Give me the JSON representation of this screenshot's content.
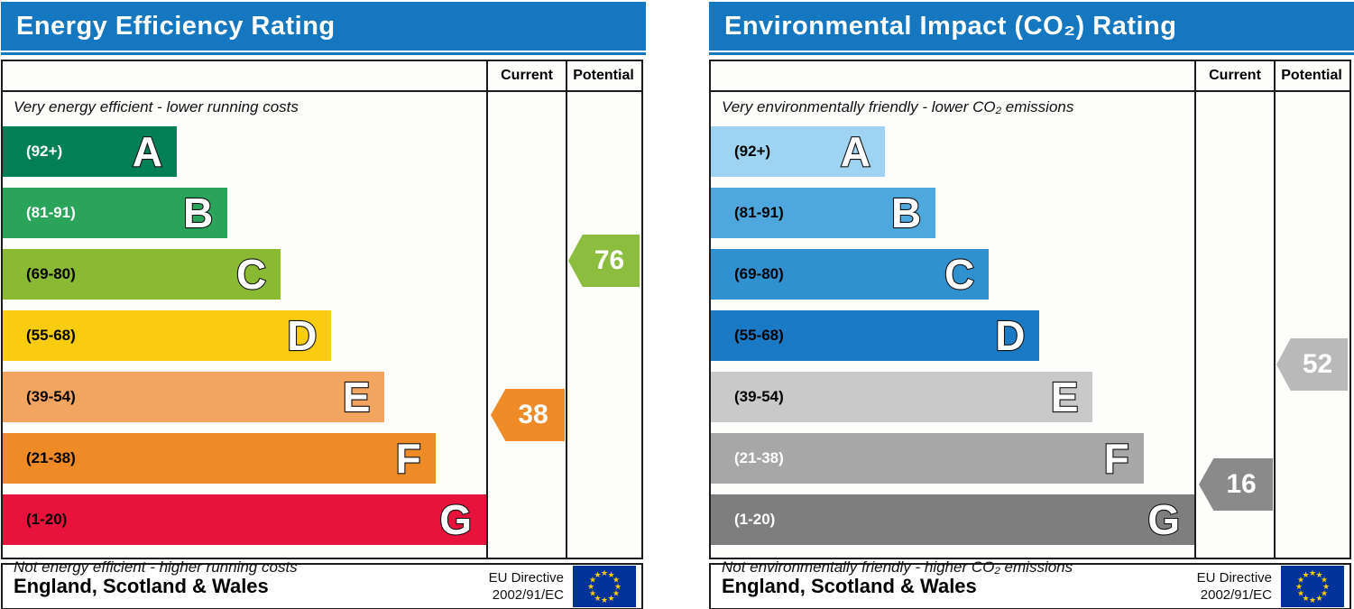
{
  "colors": {
    "header_bg": "#1577bf",
    "flag_blue": "#003399",
    "flag_star": "#ffcc00"
  },
  "panels": [
    {
      "title": "Energy Efficiency Rating",
      "columns": {
        "current": "Current",
        "potential": "Potential"
      },
      "top_caption": "Very energy efficient - lower running costs",
      "bottom_caption": "Not energy efficient - higher running costs",
      "bands": [
        {
          "letter": "A",
          "range": "(92+)",
          "min": 92,
          "max": 100,
          "color": "#008054",
          "width": "36%",
          "label_color": "#ffffff"
        },
        {
          "letter": "B",
          "range": "(81-91)",
          "min": 81,
          "max": 91,
          "color": "#2aa45a",
          "width": "46.5%",
          "label_color": "#ffffff"
        },
        {
          "letter": "C",
          "range": "(69-80)",
          "min": 69,
          "max": 80,
          "color": "#8aba33",
          "width": "57.5%",
          "label_color": "#000000"
        },
        {
          "letter": "D",
          "range": "(55-68)",
          "min": 55,
          "max": 68,
          "color": "#f9cc0f",
          "width": "68%",
          "label_color": "#000000"
        },
        {
          "letter": "E",
          "range": "(39-54)",
          "min": 39,
          "max": 54,
          "color": "#f2a55e",
          "width": "79%",
          "label_color": "#000000"
        },
        {
          "letter": "F",
          "range": "(21-38)",
          "min": 21,
          "max": 38,
          "color": "#ee8b27",
          "width": "89.5%",
          "label_color": "#000000"
        },
        {
          "letter": "G",
          "range": "(1-20)",
          "min": 1,
          "max": 20,
          "color": "#e8133c",
          "width": "100%",
          "label_color": "#000000"
        }
      ],
      "current": {
        "value": "38",
        "color": "#ee8b27"
      },
      "potential": {
        "value": "76",
        "color": "#8cbd3f"
      },
      "footer": {
        "region": "England, Scotland & Wales",
        "directive_line1": "EU Directive",
        "directive_line2": "2002/91/EC"
      }
    },
    {
      "title": "Environmental Impact (CO₂) Rating",
      "columns": {
        "current": "Current",
        "potential": "Potential"
      },
      "top_caption": "Very environmentally friendly - lower CO₂ emissions",
      "bottom_caption": "Not environmentally friendly - higher CO₂ emissions",
      "bands": [
        {
          "letter": "A",
          "range": "(92+)",
          "min": 92,
          "max": 100,
          "color": "#9ed3f1",
          "width": "36%",
          "label_color": "#000000"
        },
        {
          "letter": "B",
          "range": "(81-91)",
          "min": 81,
          "max": 91,
          "color": "#4fa8dd",
          "width": "46.5%",
          "label_color": "#000000"
        },
        {
          "letter": "C",
          "range": "(69-80)",
          "min": 69,
          "max": 80,
          "color": "#2f91d0",
          "width": "57.5%",
          "label_color": "#000000"
        },
        {
          "letter": "D",
          "range": "(55-68)",
          "min": 55,
          "max": 68,
          "color": "#1b7ac5",
          "width": "68%",
          "label_color": "#000000"
        },
        {
          "letter": "E",
          "range": "(39-54)",
          "min": 39,
          "max": 54,
          "color": "#c9c9c9",
          "width": "79%",
          "label_color": "#000000"
        },
        {
          "letter": "F",
          "range": "(21-38)",
          "min": 21,
          "max": 38,
          "color": "#a7a7a7",
          "width": "89.5%",
          "label_color": "#ffffff"
        },
        {
          "letter": "G",
          "range": "(1-20)",
          "min": 1,
          "max": 20,
          "color": "#7e7e7e",
          "width": "100%",
          "label_color": "#ffffff"
        }
      ],
      "current": {
        "value": "16",
        "color": "#8a8a8a"
      },
      "potential": {
        "value": "52",
        "color": "#b9b9b9"
      },
      "footer": {
        "region": "England, Scotland & Wales",
        "directive_line1": "EU Directive",
        "directive_line2": "2002/91/EC"
      }
    }
  ],
  "chart_data": [
    {
      "type": "bar",
      "title": "Energy Efficiency Rating",
      "categories": [
        "A (92+)",
        "B (81-91)",
        "C (69-80)",
        "D (55-68)",
        "E (39-54)",
        "F (21-38)",
        "G (1-20)"
      ],
      "values": [
        36,
        46.5,
        57.5,
        68,
        79,
        89.5,
        100
      ],
      "series": [
        {
          "name": "Current",
          "values": [
            38
          ],
          "band": "F"
        },
        {
          "name": "Potential",
          "values": [
            76
          ],
          "band": "C"
        }
      ],
      "xlabel": "",
      "ylabel": "",
      "ylim": [
        1,
        100
      ],
      "annotations": [
        "Very energy efficient - lower running costs",
        "Not energy efficient - higher running costs",
        "England, Scotland & Wales",
        "EU Directive 2002/91/EC"
      ]
    },
    {
      "type": "bar",
      "title": "Environmental Impact (CO₂) Rating",
      "categories": [
        "A (92+)",
        "B (81-91)",
        "C (69-80)",
        "D (55-68)",
        "E (39-54)",
        "F (21-38)",
        "G (1-20)"
      ],
      "values": [
        36,
        46.5,
        57.5,
        68,
        79,
        89.5,
        100
      ],
      "series": [
        {
          "name": "Current",
          "values": [
            16
          ],
          "band": "G"
        },
        {
          "name": "Potential",
          "values": [
            52
          ],
          "band": "E"
        }
      ],
      "xlabel": "",
      "ylabel": "",
      "ylim": [
        1,
        100
      ],
      "annotations": [
        "Very environmentally friendly - lower CO₂ emissions",
        "Not environmentally friendly - higher CO₂ emissions",
        "England, Scotland & Wales",
        "EU Directive 2002/91/EC"
      ]
    }
  ]
}
